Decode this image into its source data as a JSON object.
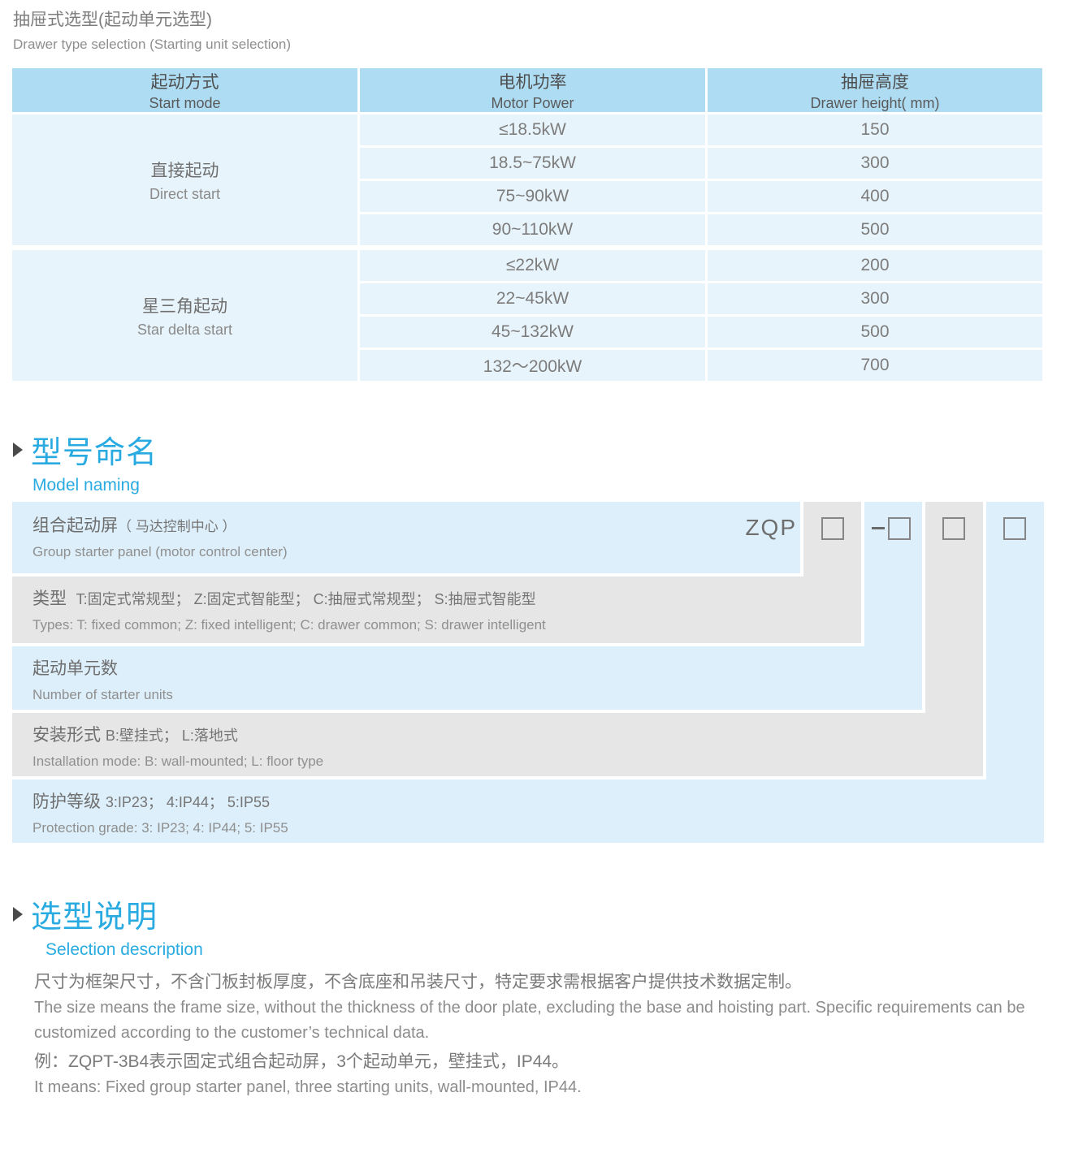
{
  "page": {
    "title_cn": "抽屉式选型(起动单元选型)",
    "title_en": "Drawer type selection (Starting unit selection)"
  },
  "selection_table": {
    "headers": [
      {
        "cn": "起动方式",
        "en": "Start mode"
      },
      {
        "cn": "电机功率",
        "en": "Motor Power"
      },
      {
        "cn": "抽屉高度",
        "en": "Drawer height( mm)"
      }
    ],
    "groups": [
      {
        "mode_cn": "直接起动",
        "mode_en": "Direct start",
        "rows": [
          {
            "power": "≤18.5kW",
            "height": "150"
          },
          {
            "power": "18.5~75kW",
            "height": "300"
          },
          {
            "power": "75~90kW",
            "height": "400"
          },
          {
            "power": "90~110kW",
            "height": "500"
          }
        ]
      },
      {
        "mode_cn": "星三角起动",
        "mode_en": "Star delta start",
        "rows": [
          {
            "power": "≤22kW",
            "height": "200"
          },
          {
            "power": "22~45kW",
            "height": "300"
          },
          {
            "power": "45~132kW",
            "height": "500"
          },
          {
            "power": "132～200kW",
            "height": "700"
          }
        ]
      }
    ]
  },
  "model_naming": {
    "heading_cn": "型号命名",
    "heading_en": "Model naming",
    "code": "ZQP",
    "dash": "-",
    "rows": [
      {
        "cn": "组合起动屏",
        "cn_sub": "（ 马达控制中心 ）",
        "en": "Group starter panel (motor control center)"
      },
      {
        "cn": "类型",
        "cn_detail": "T:固定式常规型； Z:固定式智能型； C:抽屉式常规型； S:抽屉式智能型",
        "en": "Types: T: fixed common; Z: fixed intelligent; C: drawer common; S: drawer intelligent"
      },
      {
        "cn": "起动单元数",
        "en": "Number of starter units"
      },
      {
        "cn": "安装形式",
        "cn_detail": "B:壁挂式； L:落地式",
        "en": "Installation mode: B: wall-mounted; L: floor type"
      },
      {
        "cn": "防护等级",
        "cn_detail": "3:IP23； 4:IP44； 5:IP55",
        "en": "Protection grade:  3: IP23; 4: IP44; 5: IP55"
      }
    ]
  },
  "selection_description": {
    "heading_cn": "选型说明",
    "heading_en": "Selection description",
    "paragraphs": [
      {
        "cn": "尺寸为框架尺寸，不含门板封板厚度，不含底座和吊装尺寸，特定要求需根据客户提供技术数据定制。",
        "en": "The size means the frame size, without the thickness of the door plate, excluding the base and hoisting part. Specific requirements can be customized according to the customer’s technical data."
      },
      {
        "cn": "例：ZQPT-3B4表示固定式组合起动屏，3个起动单元，壁挂式，IP44。",
        "en": "It means: Fixed group starter panel, three starting units, wall-mounted, IP44."
      }
    ]
  },
  "colors": {
    "accent_blue": "#29abe2",
    "table_header_bg": "#aedcf3",
    "table_row_bg": "#e8f4fb",
    "diagram_blue_bg": "#ddeffa",
    "diagram_gray_bg": "#e6e6e6"
  }
}
